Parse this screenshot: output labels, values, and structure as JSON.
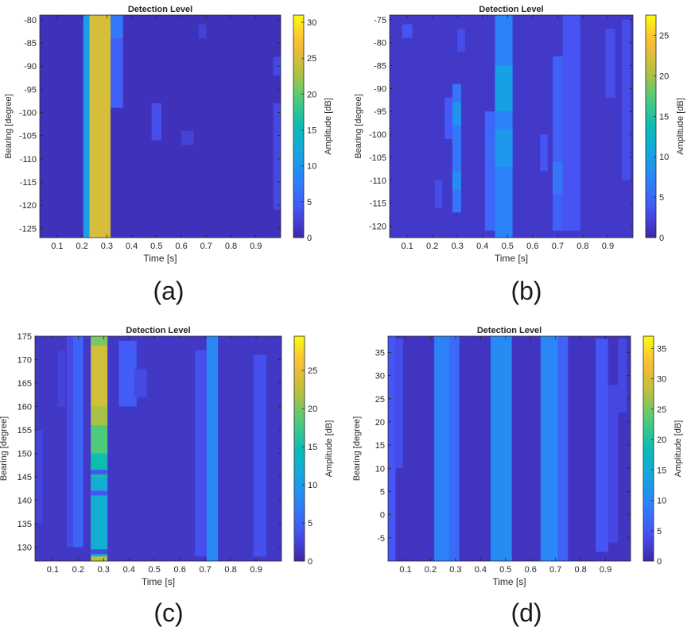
{
  "figure": {
    "type": "heatmap-grid",
    "colormap": "parula"
  },
  "chart_data": [
    {
      "id": "a",
      "type": "heatmap",
      "title": "Detection Level",
      "xlabel": "Time [s]",
      "ylabel": "Bearing [degree]",
      "colorbar_label": "Amplitude [dB]",
      "caption": "(a)",
      "xlim": [
        0.03,
        1.0
      ],
      "ylim": [
        -127,
        -79
      ],
      "xticks": [
        0.1,
        0.2,
        0.3,
        0.4,
        0.5,
        0.6,
        0.7,
        0.8,
        0.9
      ],
      "yticks": [
        -80,
        -85,
        -90,
        -95,
        -100,
        -105,
        -110,
        -115,
        -120,
        -125
      ],
      "clim": [
        0,
        31
      ],
      "cticks": [
        0,
        5,
        10,
        15,
        20,
        25,
        30
      ],
      "background": 1,
      "bands": [
        {
          "x0": 0.205,
          "x1": 0.23,
          "value": 11
        },
        {
          "x0": 0.23,
          "x1": 0.315,
          "value": 25
        }
      ],
      "patches": [
        {
          "x0": 0.315,
          "x1": 0.365,
          "y0": -99,
          "y1": -79,
          "value": 5
        },
        {
          "x0": 0.315,
          "x1": 0.365,
          "y0": -84,
          "y1": -79,
          "value": 7
        },
        {
          "x0": 0.48,
          "x1": 0.52,
          "y0": -106,
          "y1": -98,
          "value": 3.5
        },
        {
          "x0": 0.6,
          "x1": 0.65,
          "y0": -107,
          "y1": -104,
          "value": 2.5
        },
        {
          "x0": 0.67,
          "x1": 0.7,
          "y0": -84,
          "y1": -81,
          "value": 2.5
        },
        {
          "x0": 0.97,
          "x1": 1.0,
          "y0": -121,
          "y1": -98,
          "value": 3
        },
        {
          "x0": 0.97,
          "x1": 1.0,
          "y0": -92,
          "y1": -88,
          "value": 3
        }
      ]
    },
    {
      "id": "b",
      "type": "heatmap",
      "title": "Detection Level",
      "xlabel": "Time [s]",
      "ylabel": "Bearing [degree]",
      "colorbar_label": "Amplitude [dB]",
      "caption": "(b)",
      "xlim": [
        0.03,
        1.0
      ],
      "ylim": [
        -122.5,
        -74
      ],
      "xticks": [
        0.1,
        0.2,
        0.3,
        0.4,
        0.5,
        0.6,
        0.7,
        0.8,
        0.9
      ],
      "yticks": [
        -75,
        -80,
        -85,
        -90,
        -95,
        -100,
        -105,
        -110,
        -115,
        -120
      ],
      "clim": [
        0,
        27.5
      ],
      "cticks": [
        0,
        5,
        10,
        15,
        20,
        25
      ],
      "background": 1.5,
      "bands": [
        {
          "x0": 0.45,
          "x1": 0.52,
          "value": 7
        }
      ],
      "patches": [
        {
          "x0": 0.45,
          "x1": 0.52,
          "y0": -95,
          "y1": -85,
          "value": 10
        },
        {
          "x0": 0.45,
          "x1": 0.52,
          "y0": -107,
          "y1": -99,
          "value": 9
        },
        {
          "x0": 0.28,
          "x1": 0.315,
          "y0": -117,
          "y1": -89,
          "value": 6
        },
        {
          "x0": 0.28,
          "x1": 0.315,
          "y0": -98,
          "y1": -93,
          "value": 8.5
        },
        {
          "x0": 0.28,
          "x1": 0.315,
          "y0": -112,
          "y1": -108,
          "value": 8
        },
        {
          "x0": 0.25,
          "x1": 0.28,
          "y0": -101,
          "y1": -92,
          "value": 4
        },
        {
          "x0": 0.41,
          "x1": 0.45,
          "y0": -121,
          "y1": -95,
          "value": 5
        },
        {
          "x0": 0.68,
          "x1": 0.72,
          "y0": -121,
          "y1": -83,
          "value": 4.5
        },
        {
          "x0": 0.68,
          "x1": 0.72,
          "y0": -113,
          "y1": -106,
          "value": 6
        },
        {
          "x0": 0.72,
          "x1": 0.79,
          "y0": -121,
          "y1": -74,
          "value": 3.5
        },
        {
          "x0": 0.63,
          "x1": 0.66,
          "y0": -108,
          "y1": -100,
          "value": 3.5
        },
        {
          "x0": 0.08,
          "x1": 0.12,
          "y0": -79,
          "y1": -76,
          "value": 3.5
        },
        {
          "x0": 0.3,
          "x1": 0.33,
          "y0": -82,
          "y1": -77,
          "value": 3
        },
        {
          "x0": 0.89,
          "x1": 0.93,
          "y0": -92,
          "y1": -77,
          "value": 3
        },
        {
          "x0": 0.955,
          "x1": 0.99,
          "y0": -110,
          "y1": -75,
          "value": 3
        },
        {
          "x0": 0.21,
          "x1": 0.24,
          "y0": -116,
          "y1": -110,
          "value": 3
        }
      ]
    },
    {
      "id": "c",
      "type": "heatmap",
      "title": "Detection Level",
      "xlabel": "Time [s]",
      "ylabel": "Bearing [degree]",
      "colorbar_label": "Amplitude [dB]",
      "caption": "(c)",
      "xlim": [
        0.03,
        1.0
      ],
      "ylim": [
        127,
        175
      ],
      "xticks": [
        0.1,
        0.2,
        0.3,
        0.4,
        0.5,
        0.6,
        0.7,
        0.8,
        0.9
      ],
      "yticks": [
        130,
        135,
        140,
        145,
        150,
        155,
        160,
        165,
        170,
        175
      ],
      "clim": [
        0,
        29.5
      ],
      "cticks": [
        0,
        5,
        10,
        15,
        20,
        25
      ],
      "background": 1.5,
      "bands": [
        {
          "x0": 0.705,
          "x1": 0.75,
          "value": 8
        },
        {
          "x0": 0.25,
          "x1": 0.315,
          "value": 22
        }
      ],
      "patches": [
        {
          "x0": 0.25,
          "x1": 0.315,
          "y0": 150,
          "y1": 156,
          "value": 18.5
        },
        {
          "x0": 0.25,
          "x1": 0.315,
          "y0": 145,
          "y1": 150,
          "value": 15
        },
        {
          "x0": 0.25,
          "x1": 0.315,
          "y0": 128,
          "y1": 145,
          "value": 12.5
        },
        {
          "x0": 0.25,
          "x1": 0.315,
          "y0": 141,
          "y1": 142,
          "value": 4
        },
        {
          "x0": 0.25,
          "x1": 0.315,
          "y0": 145.5,
          "y1": 146.5,
          "value": 4
        },
        {
          "x0": 0.25,
          "x1": 0.315,
          "y0": 128.5,
          "y1": 129.5,
          "value": 3
        },
        {
          "x0": 0.25,
          "x1": 0.315,
          "y0": 156,
          "y1": 160,
          "value": 21.5
        },
        {
          "x0": 0.25,
          "x1": 0.315,
          "y0": 160,
          "y1": 175,
          "value": 23.5
        },
        {
          "x0": 0.25,
          "x1": 0.315,
          "y0": 173,
          "y1": 175,
          "value": 20
        },
        {
          "x0": 0.18,
          "x1": 0.22,
          "y0": 130,
          "y1": 175,
          "value": 5
        },
        {
          "x0": 0.36,
          "x1": 0.43,
          "y0": 160,
          "y1": 174,
          "value": 4.5
        },
        {
          "x0": 0.42,
          "x1": 0.47,
          "y0": 162,
          "y1": 168,
          "value": 3
        },
        {
          "x0": 0.66,
          "x1": 0.705,
          "y0": 128,
          "y1": 172,
          "value": 3.5
        },
        {
          "x0": 0.89,
          "x1": 0.94,
          "y0": 128,
          "y1": 171,
          "value": 3.5
        },
        {
          "x0": 0.12,
          "x1": 0.15,
          "y0": 160,
          "y1": 172,
          "value": 2.5
        },
        {
          "x0": 0.03,
          "x1": 0.06,
          "y0": 135,
          "y1": 155,
          "value": 2.5
        },
        {
          "x0": 0.155,
          "x1": 0.18,
          "y0": 130,
          "y1": 175,
          "value": 3
        }
      ]
    },
    {
      "id": "d",
      "type": "heatmap",
      "title": "Detection Level",
      "xlabel": "Time [s]",
      "ylabel": "Bearing [degree]",
      "colorbar_label": "Amplitude [dB]",
      "caption": "(d)",
      "xlim": [
        0.03,
        1.0
      ],
      "ylim": [
        -10,
        38.5
      ],
      "xticks": [
        0.1,
        0.2,
        0.3,
        0.4,
        0.5,
        0.6,
        0.7,
        0.8,
        0.9
      ],
      "yticks": [
        -5,
        0,
        5,
        10,
        15,
        20,
        25,
        30,
        35
      ],
      "clim": [
        0,
        37
      ],
      "cticks": [
        0,
        5,
        10,
        15,
        20,
        25,
        30,
        35
      ],
      "background": 1.5,
      "bands": [
        {
          "x0": 0.215,
          "x1": 0.275,
          "value": 9.5
        },
        {
          "x0": 0.275,
          "x1": 0.315,
          "value": 7
        },
        {
          "x0": 0.44,
          "x1": 0.525,
          "value": 10.5
        },
        {
          "x0": 0.64,
          "x1": 0.71,
          "value": 10
        },
        {
          "x0": 0.03,
          "x1": 0.06,
          "value": 5
        }
      ],
      "patches": [
        {
          "x0": 0.71,
          "x1": 0.75,
          "y0": -10,
          "y1": 38.5,
          "value": 6
        },
        {
          "x0": 0.06,
          "x1": 0.09,
          "y0": 10,
          "y1": 38,
          "value": 4
        },
        {
          "x0": 0.86,
          "x1": 0.91,
          "y0": -8,
          "y1": 38,
          "value": 5
        },
        {
          "x0": 0.91,
          "x1": 0.95,
          "y0": -6,
          "y1": 28,
          "value": 3.5
        },
        {
          "x0": 0.95,
          "x1": 0.985,
          "y0": 22,
          "y1": 38,
          "value": 3.5
        }
      ]
    }
  ]
}
